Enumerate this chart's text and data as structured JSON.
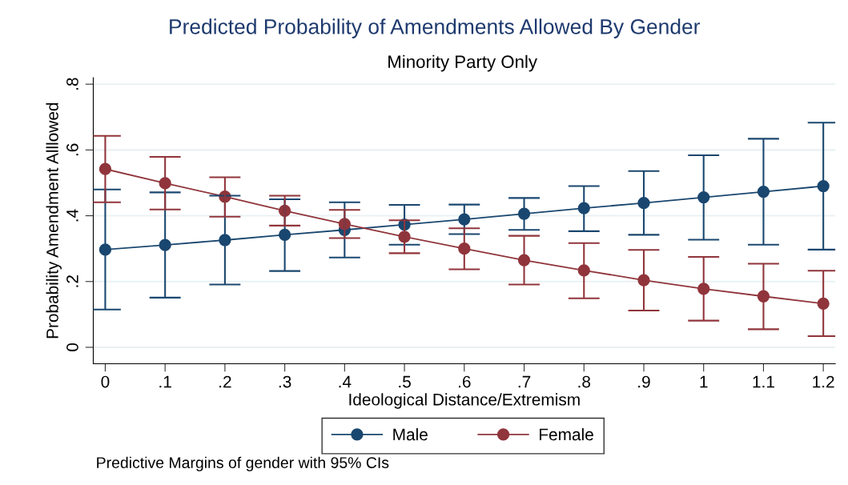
{
  "chart_data": {
    "type": "line",
    "title": "Predicted Probability of Amendments Allowed By Gender",
    "subtitle": "Minority Party Only",
    "xlabel": "Ideological Distance/Extremism",
    "ylabel": "Probability Amendment Alllowed",
    "x": [
      0,
      0.1,
      0.2,
      0.3,
      0.4,
      0.5,
      0.6,
      0.7,
      0.8,
      0.9,
      1,
      1.1,
      1.2
    ],
    "series": [
      {
        "name": "Male",
        "color": "#1a476f",
        "values": [
          0.297,
          0.311,
          0.326,
          0.342,
          0.357,
          0.373,
          0.389,
          0.406,
          0.423,
          0.439,
          0.456,
          0.473,
          0.49
        ],
        "errors": [
          [
            0.115,
            0.48
          ],
          [
            0.151,
            0.471
          ],
          [
            0.191,
            0.461
          ],
          [
            0.232,
            0.45
          ],
          [
            0.273,
            0.441
          ],
          [
            0.312,
            0.433
          ],
          [
            0.344,
            0.434
          ],
          [
            0.357,
            0.454
          ],
          [
            0.353,
            0.49
          ],
          [
            0.342,
            0.536
          ],
          [
            0.327,
            0.584
          ],
          [
            0.312,
            0.634
          ],
          [
            0.297,
            0.683
          ]
        ]
      },
      {
        "name": "Female",
        "color": "#90353b",
        "values": [
          0.542,
          0.499,
          0.458,
          0.415,
          0.375,
          0.336,
          0.3,
          0.265,
          0.234,
          0.204,
          0.178,
          0.155,
          0.133
        ],
        "errors": [
          [
            0.441,
            0.643
          ],
          [
            0.419,
            0.579
          ],
          [
            0.397,
            0.517
          ],
          [
            0.37,
            0.461
          ],
          [
            0.332,
            0.418
          ],
          [
            0.286,
            0.386
          ],
          [
            0.237,
            0.362
          ],
          [
            0.191,
            0.339
          ],
          [
            0.149,
            0.317
          ],
          [
            0.112,
            0.296
          ],
          [
            0.081,
            0.275
          ],
          [
            0.055,
            0.254
          ],
          [
            0.034,
            0.233
          ]
        ]
      }
    ],
    "xlim": [
      -0.02,
      1.22
    ],
    "ylim": [
      -0.05,
      0.82
    ],
    "xticks": [
      0,
      {
        "value": 0.1,
        "label": ".1"
      },
      {
        "value": 0.2,
        "label": ".2"
      },
      {
        "value": 0.3,
        "label": ".3"
      },
      {
        "value": 0.4,
        "label": ".4"
      },
      {
        "value": 0.5,
        "label": ".5"
      },
      {
        "value": 0.6,
        "label": ".6"
      },
      {
        "value": 0.7,
        "label": ".7"
      },
      {
        "value": 0.8,
        "label": ".8"
      },
      {
        "value": 0.9,
        "label": ".9"
      },
      1,
      1.1,
      1.2
    ],
    "yticks": [
      0,
      {
        "value": 0.2,
        "label": ".2"
      },
      {
        "value": 0.4,
        "label": ".4"
      },
      {
        "value": 0.6,
        "label": ".6"
      },
      {
        "value": 0.8,
        "label": ".8"
      }
    ],
    "grid": "y",
    "legend": "bottom",
    "marker": "circle",
    "line_style": "solid",
    "annotations": [
      "Predictive Margins of gender with 95% CIs"
    ]
  }
}
